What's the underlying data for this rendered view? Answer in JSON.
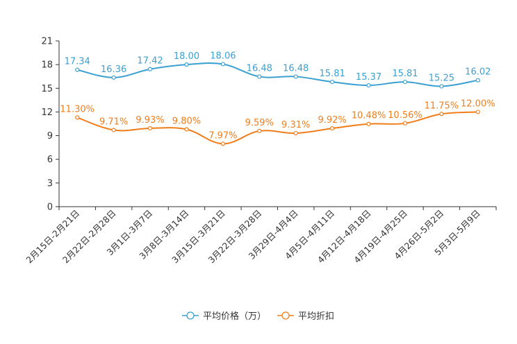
{
  "chart_data": {
    "type": "line",
    "categories": [
      "2月15日-2月21日",
      "2月22日-2月28日",
      "3月1日-3月7日",
      "3月8日-3月14日",
      "3月15日-3月21日",
      "3月22日-3月28日",
      "3月29日-4月4日",
      "4月5日-4月11日",
      "4月12日-4月18日",
      "4月19日-4月25日",
      "4月26日-5月2日",
      "5月3日-5月9日"
    ],
    "ylim": [
      0,
      21
    ],
    "yticks": [
      0,
      3,
      6,
      9,
      12,
      15,
      18,
      21
    ],
    "series": [
      {
        "name": "平均价格（万）",
        "color": "#3a9fd1",
        "values": [
          17.34,
          16.36,
          17.42,
          18.0,
          18.06,
          16.48,
          16.48,
          15.81,
          15.37,
          15.81,
          15.25,
          16.02
        ],
        "labels": [
          "17.34",
          "16.36",
          "17.42",
          "18.00",
          "18.06",
          "16.48",
          "16.48",
          "15.81",
          "15.37",
          "15.81",
          "15.25",
          "16.02"
        ]
      },
      {
        "name": "平均折扣",
        "color": "#f07d1a",
        "values": [
          11.3,
          9.71,
          9.93,
          9.8,
          7.97,
          9.59,
          9.31,
          9.92,
          10.48,
          10.56,
          11.75,
          12.0
        ],
        "labels": [
          "11.30%",
          "9.71%",
          "9.93%",
          "9.80%",
          "7.97%",
          "9.59%",
          "9.31%",
          "9.92%",
          "10.48%",
          "10.56%",
          "11.75%",
          "12.00%"
        ]
      }
    ],
    "legend": "bottom-center"
  }
}
